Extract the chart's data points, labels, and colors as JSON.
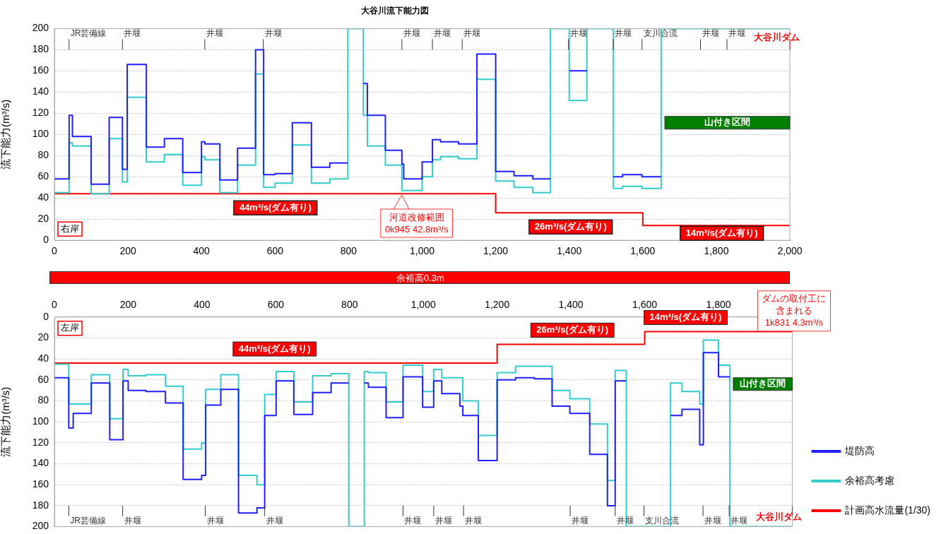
{
  "chart_data": [
    {
      "type": "step",
      "title": "大谷川流下能力図",
      "ylabel": "流下能力(m³/s)",
      "xlim": [
        0,
        2000
      ],
      "xticks": [
        0,
        200,
        400,
        600,
        800,
        {
          "value": 1000,
          "label": "1,000"
        },
        {
          "value": 1200,
          "label": "1,200"
        },
        {
          "value": 1400,
          "label": "1,400"
        },
        {
          "value": 1600,
          "label": "1,600"
        },
        {
          "value": 1800,
          "label": "1,800"
        },
        {
          "value": 2000,
          "label": "2,000"
        }
      ],
      "ylim": [
        0,
        200
      ],
      "yticks": [
        0,
        20,
        40,
        60,
        80,
        100,
        120,
        140,
        160,
        180,
        200
      ],
      "grid": "y",
      "series": [
        {
          "color": "#1f1fff",
          "x": [
            0,
            40,
            49,
            100,
            149,
            185,
            198,
            250,
            299,
            349,
            400,
            409,
            450,
            498,
            547,
            569,
            600,
            647,
            699,
            749,
            798,
            840,
            851,
            900,
            945,
            950,
            1000,
            1028,
            1050,
            1099,
            1149,
            1200,
            1250,
            1301,
            1349,
            1400,
            1448,
            1520,
            1545,
            1598,
            1650
          ],
          "values": [
            58,
            118,
            98,
            53,
            116,
            67,
            166,
            88,
            96,
            64,
            93,
            91,
            57,
            87,
            180,
            62,
            63,
            111,
            69,
            73,
            null,
            148,
            118,
            85,
            72,
            58,
            74,
            95,
            93,
            91,
            176,
            65,
            61,
            58,
            null,
            160,
            null,
            60,
            62,
            60,
            60
          ]
        },
        {
          "color": "#33cccc",
          "x": [
            0,
            40,
            49,
            100,
            149,
            185,
            198,
            250,
            299,
            349,
            400,
            409,
            450,
            498,
            547,
            569,
            600,
            647,
            699,
            749,
            798,
            840,
            851,
            900,
            945,
            1000,
            1028,
            1050,
            1099,
            1149,
            1200,
            1250,
            1301,
            1349,
            1400,
            1448,
            1520,
            1545,
            1598,
            1650,
            2000
          ],
          "values": [
            45,
            92,
            89,
            44,
            96,
            55,
            135,
            74,
            81,
            52,
            79,
            76,
            45,
            71,
            157,
            50,
            54,
            90,
            54,
            58,
            200,
            118,
            89,
            71,
            47,
            60,
            76,
            79,
            77,
            152,
            56,
            50,
            45,
            200,
            132,
            200,
            49,
            51,
            49,
            200,
            200
          ]
        },
        {
          "color": "#ff0000",
          "x": [
            0,
            1200,
            1600,
            2000
          ],
          "values": [
            44,
            26,
            14,
            14
          ]
        }
      ],
      "bands": [
        {
          "axis": "x",
          "from": 1660,
          "to": 2000,
          "label": "山付き区間",
          "color": "#007f00"
        }
      ],
      "ref_lines": [
        {
          "axis": "x",
          "value": 40,
          "label": "JR芸備線"
        },
        {
          "axis": "x",
          "value": 185,
          "label": "井堰"
        },
        {
          "axis": "x",
          "value": 409,
          "label": "井堰"
        },
        {
          "axis": "x",
          "value": 568,
          "label": "井堰"
        },
        {
          "axis": "x",
          "value": 945,
          "label": "井堰"
        },
        {
          "axis": "x",
          "value": 1028,
          "label": "井堰"
        },
        {
          "axis": "x",
          "value": 1109,
          "label": "井堰"
        },
        {
          "axis": "x",
          "value": 1398,
          "label": "井堰"
        },
        {
          "axis": "x",
          "value": 1520,
          "label": "井堰"
        },
        {
          "axis": "x",
          "value": 1598,
          "label": "支川合流"
        },
        {
          "axis": "x",
          "value": 1757,
          "label": "井堰"
        },
        {
          "axis": "x",
          "value": 1829,
          "label": "井堰"
        },
        {
          "axis": "x",
          "value": 2000,
          "label": "大谷川ダム",
          "color": "#ff0000"
        }
      ],
      "annotations": [
        "右岸",
        {
          "text": "44m³/s(ダム有り)",
          "x": 601,
          "y": 44
        },
        {
          "text": "26m³/s(ダム有り)",
          "x": 1404,
          "y": 26
        },
        {
          "text": "14m³/s(ダム有り)",
          "x": 1815,
          "y": 14
        },
        {
          "text": "河道改修範囲\n0k945 42.8m³/s",
          "x": 945,
          "y": 42.8
        }
      ]
    },
    {
      "type": "step",
      "ylabel": "流下能力(m³/s)",
      "xlim": [
        0,
        2000
      ],
      "xticks": [
        0,
        200,
        400,
        600,
        800,
        {
          "value": 1000,
          "label": "1,000"
        },
        {
          "value": 1200,
          "label": "1,200"
        },
        {
          "value": 1400,
          "label": "1,400"
        },
        {
          "value": 1600,
          "label": "1,600"
        },
        {
          "value": 1800,
          "label": "1,800"
        }
      ],
      "ylim": [
        200,
        0
      ],
      "yticks": [
        0,
        20,
        40,
        60,
        80,
        100,
        120,
        140,
        160,
        180,
        200
      ],
      "grid": "y",
      "legend": "bottom right",
      "series": [
        {
          "name": "堤防高",
          "color": "#1f1fff",
          "x": [
            0,
            39,
            51,
            100,
            150,
            186,
            200,
            248,
            301,
            349,
            399,
            410,
            451,
            499,
            549,
            570,
            601,
            649,
            700,
            750,
            798,
            840,
            851,
            899,
            945,
            998,
            1028,
            1050,
            1099,
            1107,
            1149,
            1200,
            1250,
            1301,
            1349,
            1397,
            1451,
            1499,
            1520,
            1550,
            1670,
            1701,
            1749,
            1759,
            1800,
            1831
          ],
          "values": [
            58,
            106,
            92,
            63,
            117,
            61,
            70,
            71,
            82,
            155,
            151,
            84,
            69,
            187,
            182,
            94,
            61,
            93,
            72,
            63,
            null,
            63,
            67,
            96,
            57,
            86,
            61,
            73,
            85,
            94,
            137,
            60,
            58,
            59,
            85,
            92,
            131,
            180,
            61,
            null,
            94,
            88,
            122,
            34,
            57,
            57
          ]
        },
        {
          "name": "余裕高考慮",
          "color": "#33cccc",
          "x": [
            0,
            39,
            100,
            150,
            186,
            200,
            248,
            301,
            349,
            399,
            410,
            451,
            499,
            549,
            570,
            601,
            649,
            700,
            750,
            798,
            840,
            851,
            899,
            945,
            998,
            1028,
            1050,
            1107,
            1149,
            1200,
            1250,
            1349,
            1397,
            1451,
            1499,
            1520,
            1550,
            1670,
            1701,
            1749,
            1759,
            1800,
            1831,
            2000
          ],
          "values": [
            45,
            83,
            55,
            97,
            50,
            56,
            55,
            66,
            126,
            120,
            69,
            55,
            151,
            160,
            74,
            52,
            81,
            56,
            54,
            200,
            52,
            53,
            81,
            46,
            71,
            50,
            58,
            80,
            113,
            53,
            47,
            70,
            78,
            102,
            156,
            51,
            200,
            63,
            71,
            83,
            22,
            46,
            200,
            200
          ]
        },
        {
          "name": "計画高水流量(1/30)",
          "color": "#ff0000",
          "x": [
            0,
            1200,
            1600,
            2000
          ],
          "values": [
            44,
            26,
            14,
            14
          ]
        }
      ],
      "bands": [
        {
          "axis": "x",
          "from": 1840,
          "to": 2000,
          "label": "山付き区間",
          "color": "#007f00"
        }
      ],
      "ref_lines": [
        {
          "axis": "x",
          "value": 39,
          "label": "JR芸備線"
        },
        {
          "axis": "x",
          "value": 185,
          "label": "井堰"
        },
        {
          "axis": "x",
          "value": 409,
          "label": "井堰"
        },
        {
          "axis": "x",
          "value": 570,
          "label": "井堰"
        },
        {
          "axis": "x",
          "value": 945,
          "label": "井堰"
        },
        {
          "axis": "x",
          "value": 1028,
          "label": "井堰"
        },
        {
          "axis": "x",
          "value": 1109,
          "label": "井堰"
        },
        {
          "axis": "x",
          "value": 1398,
          "label": "井堰"
        },
        {
          "axis": "x",
          "value": 1520,
          "label": "井堰"
        },
        {
          "axis": "x",
          "value": 1598,
          "label": "支川合流"
        },
        {
          "axis": "x",
          "value": 1758,
          "label": "井堰"
        },
        {
          "axis": "x",
          "value": 1829,
          "label": "井堰"
        },
        {
          "axis": "x",
          "value": 2000,
          "label": "大谷川ダム",
          "color": "#ff0000"
        }
      ],
      "annotations": [
        "左岸",
        "余裕高0.3m",
        "ダムの取付工に含まれる\n1k831 4.3m³/s",
        {
          "text": "44m³/s(ダム有り)",
          "x": 597,
          "y": 44
        },
        {
          "text": "26m³/s(ダム有り)",
          "x": 1404,
          "y": 26
        },
        {
          "text": "14m³/s(ダム有り)",
          "x": 1711,
          "y": 14
        }
      ]
    }
  ]
}
